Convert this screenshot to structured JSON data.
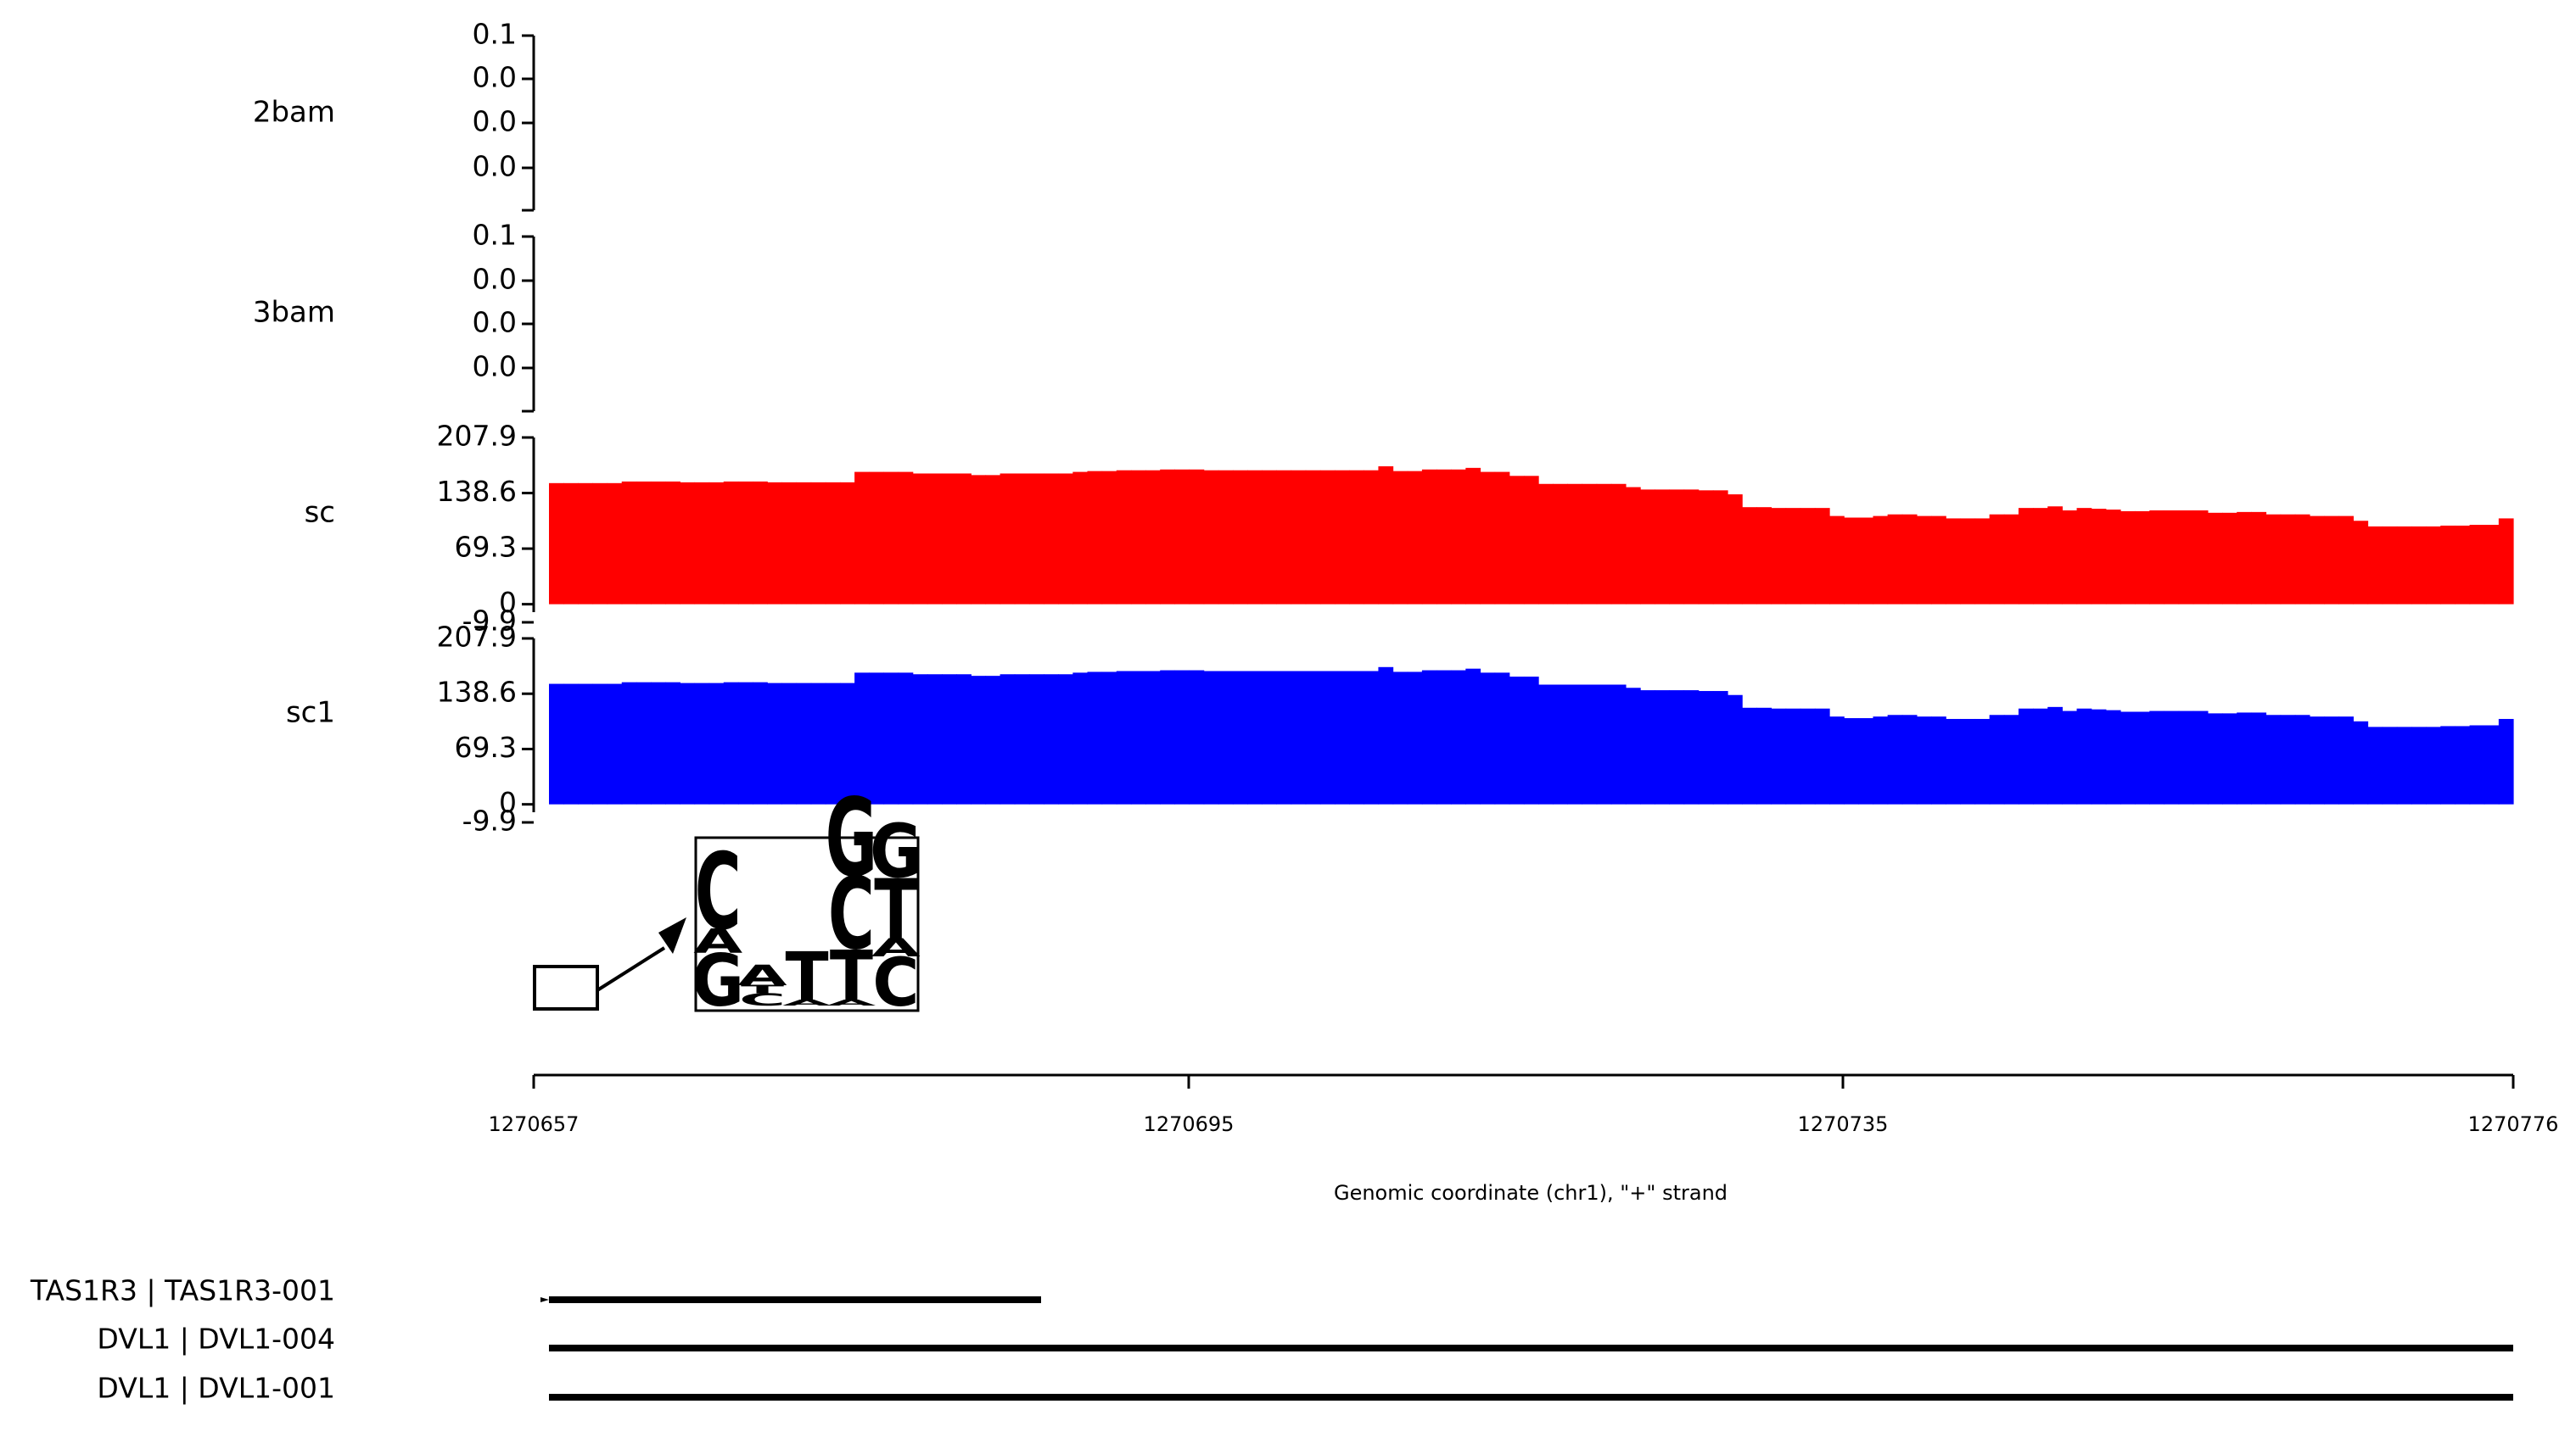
{
  "colors": {
    "sc": "#ff0000",
    "sc1": "#0000ff",
    "axis": "#000000",
    "A": "#008000",
    "C": "#0000cc",
    "G": "#ffb300",
    "T": "#cc0000"
  },
  "chart_data": {
    "type": "area",
    "title": "",
    "xlabel": "Genomic coordinate (chr1), \"+\" strand",
    "xlim": [
      1270657,
      1270776
    ],
    "xticks": [
      "1270657",
      "1270695",
      "1270735",
      "1270776"
    ],
    "tracks": [
      {
        "name": "2bam",
        "ylim": [
          0,
          0.1
        ],
        "yticks": [
          "0.1",
          "0.0",
          "0.0",
          "0.0"
        ],
        "values": []
      },
      {
        "name": "3bam",
        "ylim": [
          0,
          0.1
        ],
        "yticks": [
          "0.1",
          "0.0",
          "0.0",
          "0.0"
        ],
        "values": []
      },
      {
        "name": "sc",
        "color": "#ff0000",
        "ylim": [
          -9.9,
          207.9
        ],
        "yticks": [
          "207.9",
          "138.6",
          "69.3",
          "0",
          "-9.9"
        ],
        "x_start": 1270658,
        "values": [
          151,
          151,
          151,
          151,
          151,
          153,
          153,
          153,
          153,
          152,
          152,
          152,
          153,
          153,
          153,
          152,
          152,
          152,
          152,
          152,
          152,
          165,
          165,
          165,
          165,
          163,
          163,
          163,
          163,
          161,
          161,
          163,
          163,
          163,
          163,
          163,
          165,
          166,
          166,
          167,
          167,
          167,
          168,
          168,
          168,
          167,
          167,
          167,
          167,
          167,
          167,
          167,
          167,
          167,
          167,
          167,
          167,
          172,
          166,
          166,
          168,
          168,
          168,
          170,
          165,
          165,
          160,
          160,
          150,
          150,
          150,
          150,
          150,
          150,
          146,
          143,
          143,
          143,
          143,
          142,
          142,
          137,
          121,
          121,
          120,
          120,
          120,
          120,
          110,
          108,
          108,
          110,
          112,
          112,
          110,
          110,
          107,
          107,
          107,
          112,
          112,
          120,
          120,
          122,
          117,
          120,
          119,
          118,
          116,
          116,
          117,
          117,
          117,
          117,
          114,
          114,
          115,
          115,
          112,
          112,
          112,
          110,
          110,
          110,
          104,
          97,
          97,
          97,
          97,
          97,
          98,
          98,
          99,
          99,
          107
        ]
      },
      {
        "name": "sc1",
        "color": "#0000ff",
        "ylim": [
          -9.9,
          207.9
        ],
        "yticks": [
          "207.9",
          "138.6",
          "69.3",
          "0",
          "-9.9"
        ],
        "x_start": 1270658,
        "values": [
          151,
          151,
          151,
          151,
          151,
          153,
          153,
          153,
          153,
          152,
          152,
          152,
          153,
          153,
          153,
          152,
          152,
          152,
          152,
          152,
          152,
          165,
          165,
          165,
          165,
          163,
          163,
          163,
          163,
          161,
          161,
          163,
          163,
          163,
          163,
          163,
          165,
          166,
          166,
          167,
          167,
          167,
          168,
          168,
          168,
          167,
          167,
          167,
          167,
          167,
          167,
          167,
          167,
          167,
          167,
          167,
          167,
          172,
          166,
          166,
          168,
          168,
          168,
          170,
          165,
          165,
          160,
          160,
          150,
          150,
          150,
          150,
          150,
          150,
          146,
          143,
          143,
          143,
          143,
          142,
          142,
          137,
          121,
          121,
          120,
          120,
          120,
          120,
          110,
          108,
          108,
          110,
          112,
          112,
          110,
          110,
          107,
          107,
          107,
          112,
          112,
          120,
          120,
          122,
          117,
          120,
          119,
          118,
          116,
          116,
          117,
          117,
          117,
          117,
          114,
          114,
          115,
          115,
          112,
          112,
          112,
          110,
          110,
          110,
          104,
          97,
          97,
          97,
          97,
          97,
          98,
          98,
          99,
          99,
          107
        ]
      }
    ],
    "motif": {
      "positions": [
        [
          {
            "base": "C",
            "h": 0.38
          },
          {
            "base": "A",
            "h": 0.12
          },
          {
            "base": "G",
            "h": 0.26
          }
        ],
        [
          {
            "base": "A",
            "h": 0.1
          },
          {
            "base": "T",
            "h": 0.04
          },
          {
            "base": "C",
            "h": 0.06
          }
        ],
        [
          {
            "base": "T",
            "h": 0.24
          },
          {
            "base": "A",
            "h": 0.03
          }
        ],
        [
          {
            "base": "G",
            "h": 0.39
          },
          {
            "base": "C",
            "h": 0.36
          },
          {
            "base": "T",
            "h": 0.25
          },
          {
            "base": "A",
            "h": 0.03
          }
        ],
        [
          {
            "base": "G",
            "h": 0.27
          },
          {
            "base": "T",
            "h": 0.3
          },
          {
            "base": "A",
            "h": 0.09
          },
          {
            "base": "C",
            "h": 0.24
          }
        ]
      ]
    },
    "genes": [
      {
        "label": "TAS1R3 | TAS1R3-001",
        "start": 1270658,
        "end": 1270688
      },
      {
        "label": "DVL1 | DVL1-004",
        "start": 1270658,
        "end": 1270776
      },
      {
        "label": "DVL1 | DVL1-001",
        "start": 1270658,
        "end": 1270776
      }
    ]
  }
}
